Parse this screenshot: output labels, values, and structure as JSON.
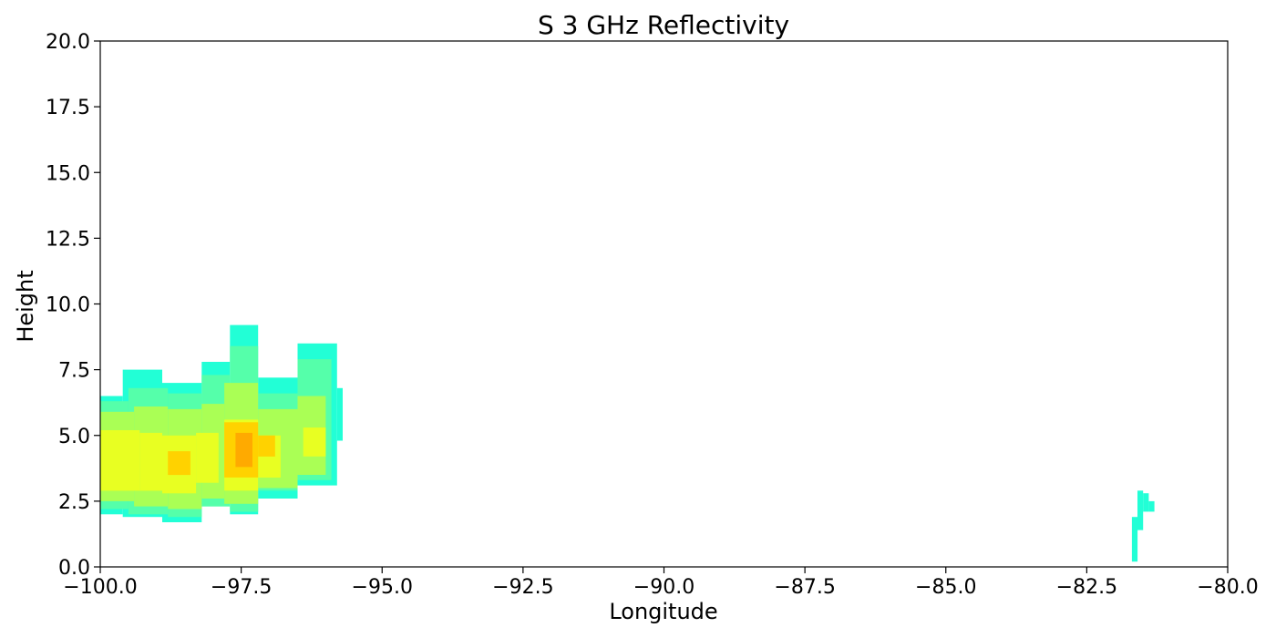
{
  "chart_data": {
    "type": "heatmap",
    "title": "S 3 GHz Reflectivity",
    "xlabel": "Longitude",
    "ylabel": "Height",
    "xlim": [
      -100.0,
      -80.0
    ],
    "ylim": [
      0.0,
      20.0
    ],
    "x_ticks": [
      "−100.0",
      "−97.5",
      "−95.0",
      "−92.5",
      "−90.0",
      "−87.5",
      "−85.0",
      "−82.5",
      "−80.0"
    ],
    "x_tick_values": [
      -100.0,
      -97.5,
      -95.0,
      -92.5,
      -90.0,
      -87.5,
      -85.0,
      -82.5,
      -80.0
    ],
    "y_ticks": [
      "0.0",
      "2.5",
      "5.0",
      "7.5",
      "10.0",
      "12.5",
      "15.0",
      "17.5",
      "20.0"
    ],
    "y_tick_values": [
      0.0,
      2.5,
      5.0,
      7.5,
      10.0,
      12.5,
      15.0,
      17.5,
      20.0
    ],
    "grid": false,
    "colors": {
      "weak": "#22ffd6",
      "light": "#55ffaa",
      "moderate": "#aaff55",
      "strong": "#e8ff22",
      "heavy": "#ffd200",
      "intense": "#ffaa00"
    },
    "cells": [
      {
        "lon": [
          -100.0,
          -99.6
        ],
        "height": [
          2.0,
          6.5
        ],
        "level": "weak"
      },
      {
        "lon": [
          -99.6,
          -98.9
        ],
        "height": [
          1.9,
          7.5
        ],
        "level": "weak"
      },
      {
        "lon": [
          -98.9,
          -98.2
        ],
        "height": [
          1.7,
          7.0
        ],
        "level": "weak"
      },
      {
        "lon": [
          -98.2,
          -97.7
        ],
        "height": [
          2.4,
          7.8
        ],
        "level": "weak"
      },
      {
        "lon": [
          -97.7,
          -97.2
        ],
        "height": [
          2.0,
          9.2
        ],
        "level": "weak"
      },
      {
        "lon": [
          -97.2,
          -96.5
        ],
        "height": [
          2.6,
          7.2
        ],
        "level": "weak"
      },
      {
        "lon": [
          -96.5,
          -95.8
        ],
        "height": [
          3.1,
          8.5
        ],
        "level": "weak"
      },
      {
        "lon": [
          -95.8,
          -95.7
        ],
        "height": [
          4.8,
          6.8
        ],
        "level": "weak"
      },
      {
        "lon": [
          -100.0,
          -99.5
        ],
        "height": [
          2.2,
          6.3
        ],
        "level": "light"
      },
      {
        "lon": [
          -99.5,
          -98.8
        ],
        "height": [
          2.0,
          6.8
        ],
        "level": "light"
      },
      {
        "lon": [
          -98.8,
          -98.2
        ],
        "height": [
          1.9,
          6.6
        ],
        "level": "light"
      },
      {
        "lon": [
          -98.2,
          -97.7
        ],
        "height": [
          2.3,
          7.3
        ],
        "level": "light"
      },
      {
        "lon": [
          -97.7,
          -97.2
        ],
        "height": [
          2.1,
          8.4
        ],
        "level": "light"
      },
      {
        "lon": [
          -97.2,
          -96.5
        ],
        "height": [
          2.9,
          6.6
        ],
        "level": "light"
      },
      {
        "lon": [
          -96.5,
          -95.9
        ],
        "height": [
          3.3,
          7.9
        ],
        "level": "light"
      },
      {
        "lon": [
          -100.0,
          -99.4
        ],
        "height": [
          2.5,
          5.9
        ],
        "level": "moderate"
      },
      {
        "lon": [
          -99.4,
          -98.8
        ],
        "height": [
          2.3,
          6.1
        ],
        "level": "moderate"
      },
      {
        "lon": [
          -98.8,
          -98.2
        ],
        "height": [
          2.2,
          6.0
        ],
        "level": "moderate"
      },
      {
        "lon": [
          -98.2,
          -97.8
        ],
        "height": [
          2.6,
          6.2
        ],
        "level": "moderate"
      },
      {
        "lon": [
          -97.8,
          -97.2
        ],
        "height": [
          2.4,
          7.0
        ],
        "level": "moderate"
      },
      {
        "lon": [
          -97.2,
          -96.5
        ],
        "height": [
          3.0,
          6.0
        ],
        "level": "moderate"
      },
      {
        "lon": [
          -96.5,
          -96.0
        ],
        "height": [
          3.5,
          6.5
        ],
        "level": "moderate"
      },
      {
        "lon": [
          -100.0,
          -99.3
        ],
        "height": [
          2.9,
          5.2
        ],
        "level": "strong"
      },
      {
        "lon": [
          -99.3,
          -98.9
        ],
        "height": [
          2.9,
          5.1
        ],
        "level": "strong"
      },
      {
        "lon": [
          -98.9,
          -98.3
        ],
        "height": [
          2.8,
          5.0
        ],
        "level": "strong"
      },
      {
        "lon": [
          -98.3,
          -97.9
        ],
        "height": [
          3.2,
          5.1
        ],
        "level": "strong"
      },
      {
        "lon": [
          -97.8,
          -97.2
        ],
        "height": [
          2.9,
          5.6
        ],
        "level": "strong"
      },
      {
        "lon": [
          -97.2,
          -96.8
        ],
        "height": [
          3.4,
          5.0
        ],
        "level": "strong"
      },
      {
        "lon": [
          -96.4,
          -96.0
        ],
        "height": [
          4.2,
          5.3
        ],
        "level": "strong"
      },
      {
        "lon": [
          -98.8,
          -98.4
        ],
        "height": [
          3.5,
          4.4
        ],
        "level": "heavy"
      },
      {
        "lon": [
          -97.8,
          -97.2
        ],
        "height": [
          3.4,
          5.5
        ],
        "level": "heavy"
      },
      {
        "lon": [
          -97.2,
          -96.9
        ],
        "height": [
          4.2,
          5.0
        ],
        "level": "heavy"
      },
      {
        "lon": [
          -97.6,
          -97.3
        ],
        "height": [
          3.8,
          5.1
        ],
        "level": "intense"
      },
      {
        "lon": [
          -81.7,
          -81.6
        ],
        "height": [
          0.2,
          1.9
        ],
        "level": "weak"
      },
      {
        "lon": [
          -81.6,
          -81.5
        ],
        "height": [
          1.4,
          2.9
        ],
        "level": "weak"
      },
      {
        "lon": [
          -81.5,
          -81.4
        ],
        "height": [
          2.1,
          2.8
        ],
        "level": "weak"
      },
      {
        "lon": [
          -81.4,
          -81.3
        ],
        "height": [
          2.1,
          2.5
        ],
        "level": "weak"
      }
    ]
  }
}
